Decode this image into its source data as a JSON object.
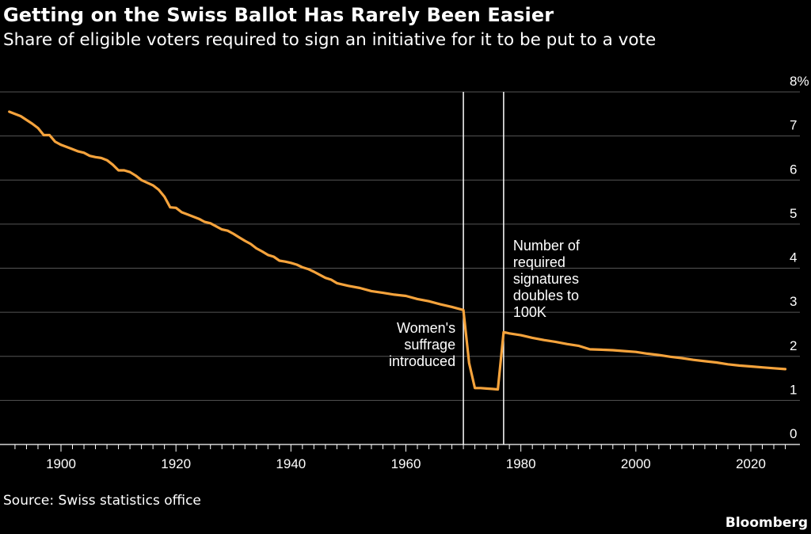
{
  "header": {
    "title": "Getting on the Swiss Ballot Has Rarely Been Easier",
    "subtitle": "Share of eligible voters required to sign an initiative for it to be put to a vote"
  },
  "footer": {
    "source": "Source: Swiss statistics office",
    "brand": "Bloomberg"
  },
  "colors": {
    "background": "#000000",
    "line": "#f5a33c",
    "text": "#ffffff",
    "grid": "#555555"
  },
  "chart_data": {
    "type": "line",
    "ylim": [
      0,
      8
    ],
    "xlim": [
      1891,
      2027
    ],
    "grid": true,
    "y_axis_side": "right",
    "y_ticks": [
      {
        "value": 0,
        "label": "0"
      },
      {
        "value": 1,
        "label": "1"
      },
      {
        "value": 2,
        "label": "2"
      },
      {
        "value": 3,
        "label": "3"
      },
      {
        "value": 4,
        "label": "4"
      },
      {
        "value": 5,
        "label": "5"
      },
      {
        "value": 6,
        "label": "6"
      },
      {
        "value": 7,
        "label": "7"
      },
      {
        "value": 8,
        "label": "8%"
      }
    ],
    "x_ticks": [
      {
        "value": 1900,
        "label": "1900"
      },
      {
        "value": 1920,
        "label": "1920"
      },
      {
        "value": 1940,
        "label": "1940"
      },
      {
        "value": 1960,
        "label": "1960"
      },
      {
        "value": 1980,
        "label": "1980"
      },
      {
        "value": 2000,
        "label": "2000"
      },
      {
        "value": 2020,
        "label": "2020"
      }
    ],
    "series": [
      {
        "color": "#f5a33c",
        "x": [
          1891,
          1893,
          1895,
          1896,
          1897,
          1898,
          1899,
          1900,
          1902,
          1903,
          1904,
          1905,
          1906,
          1907,
          1908,
          1909,
          1910,
          1911,
          1912,
          1913,
          1914,
          1916,
          1917,
          1918,
          1919,
          1920,
          1921,
          1922,
          1924,
          1925,
          1926,
          1928,
          1929,
          1930,
          1931,
          1932,
          1933,
          1934,
          1935,
          1936,
          1937,
          1938,
          1939,
          1940,
          1941,
          1942,
          1943,
          1944,
          1945,
          1946,
          1947,
          1948,
          1950,
          1952,
          1954,
          1956,
          1958,
          1960,
          1962,
          1964,
          1966,
          1968,
          1970,
          1971,
          1972,
          1973,
          1974,
          1975,
          1976,
          1977,
          1978,
          1980,
          1982,
          1984,
          1986,
          1988,
          1990,
          1992,
          1994,
          1996,
          1998,
          2000,
          2002,
          2004,
          2006,
          2008,
          2010,
          2012,
          2014,
          2016,
          2018,
          2020,
          2022,
          2024,
          2026
        ],
        "y": [
          7.55,
          7.45,
          7.28,
          7.18,
          7.02,
          7.02,
          6.87,
          6.8,
          6.7,
          6.65,
          6.62,
          6.55,
          6.52,
          6.5,
          6.45,
          6.35,
          6.22,
          6.22,
          6.18,
          6.1,
          6.0,
          5.88,
          5.78,
          5.62,
          5.38,
          5.37,
          5.27,
          5.22,
          5.12,
          5.05,
          5.02,
          4.88,
          4.85,
          4.78,
          4.7,
          4.62,
          4.55,
          4.45,
          4.38,
          4.3,
          4.26,
          4.17,
          4.15,
          4.12,
          4.08,
          4.02,
          3.98,
          3.92,
          3.85,
          3.78,
          3.74,
          3.66,
          3.6,
          3.55,
          3.48,
          3.44,
          3.4,
          3.37,
          3.3,
          3.25,
          3.18,
          3.12,
          3.05,
          1.85,
          1.28,
          1.28,
          1.27,
          1.26,
          1.25,
          2.55,
          2.52,
          2.48,
          2.42,
          2.37,
          2.33,
          2.28,
          2.24,
          2.16,
          2.15,
          2.14,
          2.12,
          2.1,
          2.06,
          2.03,
          1.99,
          1.96,
          1.92,
          1.89,
          1.86,
          1.82,
          1.79,
          1.77,
          1.75,
          1.73,
          1.71
        ]
      }
    ],
    "annotations": [
      {
        "x": 1970,
        "lines": [
          "Women's",
          "suffrage",
          "introduced"
        ],
        "side": "left"
      },
      {
        "x": 1977,
        "lines": [
          "Number of",
          "required",
          "signatures",
          "doubles to",
          "100K"
        ],
        "side": "right"
      }
    ]
  }
}
